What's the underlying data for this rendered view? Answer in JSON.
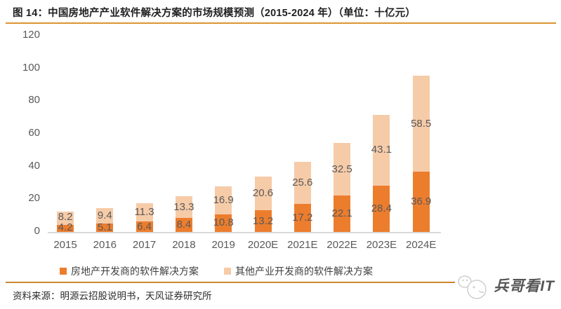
{
  "figure": {
    "title": "图 14：中国房地产产业软件解决方案的市场规模预测（2015-2024 年）（单位：十亿元）",
    "source": "资料来源：明源云招股说明书，天风证券研究所",
    "watermark": "兵哥看IT"
  },
  "colors": {
    "series1": "#ec7d2d",
    "series2": "#f6cba8",
    "title_rule": "#db9433",
    "footer_rule": "#c8872e",
    "axis_text": "#595959",
    "axis_line": "#d9d9d9"
  },
  "chart_data": {
    "type": "bar",
    "stacked": true,
    "title": "中国房地产产业软件解决方案的市场规模预测（2015-2024 年）",
    "unit": "十亿元",
    "categories": [
      "2015",
      "2016",
      "2017",
      "2018",
      "2019",
      "2020E",
      "2021E",
      "2022E",
      "2023E",
      "2024E"
    ],
    "series": [
      {
        "name": "房地产开发商的软件解决方案",
        "color": "#ec7d2d",
        "values": [
          4.2,
          5.1,
          6.4,
          8.4,
          10.8,
          13.2,
          17.2,
          22.1,
          28.4,
          36.9
        ]
      },
      {
        "name": "其他产业开发商的软件解决方案",
        "color": "#f6cba8",
        "values": [
          8.2,
          9.4,
          11.3,
          13.3,
          16.9,
          20.6,
          25.6,
          32.5,
          43.1,
          58.5
        ]
      }
    ],
    "ylim": [
      0,
      120
    ],
    "ytick_step": 20,
    "yticks": [
      0,
      20,
      40,
      60,
      80,
      100,
      120
    ],
    "grid": false,
    "legend_position": "bottom",
    "data_labels": true
  }
}
